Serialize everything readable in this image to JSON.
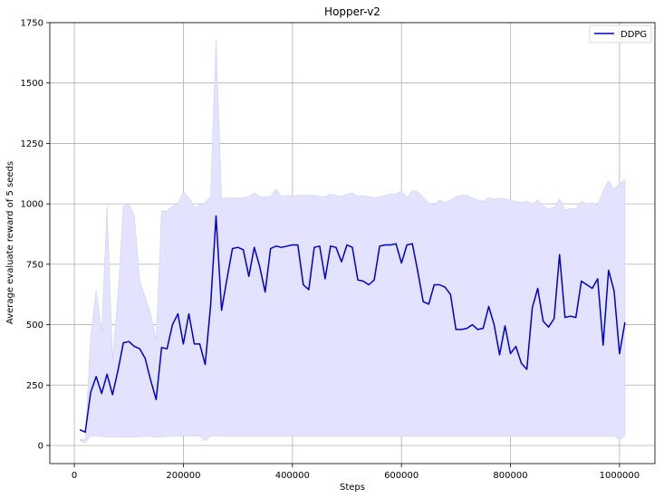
{
  "chart_data": {
    "type": "line",
    "title": "Hopper-v2",
    "xlabel": "Steps",
    "ylabel": "Average evaluate reward of 5 seeds",
    "xlim": [
      -45000,
      1065000
    ],
    "ylim": [
      -75,
      1750
    ],
    "xticks": [
      0,
      200000,
      400000,
      600000,
      800000,
      1000000
    ],
    "xtick_labels": [
      "0",
      "200000",
      "400000",
      "600000",
      "800000",
      "1000000"
    ],
    "yticks": [
      0,
      250,
      500,
      750,
      1000,
      1250,
      1500,
      1750
    ],
    "ytick_labels": [
      "0",
      "250",
      "500",
      "750",
      "1000",
      "1250",
      "1500",
      "1750"
    ],
    "grid": true,
    "legend_position": "top-right",
    "colors": {
      "line": "#0000cc",
      "band": "#e3e3ff",
      "band_edge": "#cfcff5",
      "grid": "#b0b0b0"
    },
    "series": [
      {
        "name": "DDPG",
        "x": [
          10000,
          20000,
          30000,
          40000,
          50000,
          60000,
          70000,
          80000,
          90000,
          100000,
          110000,
          120000,
          130000,
          140000,
          150000,
          160000,
          170000,
          180000,
          190000,
          200000,
          210000,
          220000,
          230000,
          240000,
          250000,
          260000,
          270000,
          280000,
          290000,
          300000,
          310000,
          320000,
          330000,
          340000,
          350000,
          360000,
          370000,
          380000,
          390000,
          400000,
          410000,
          420000,
          430000,
          440000,
          450000,
          460000,
          470000,
          480000,
          490000,
          500000,
          510000,
          520000,
          530000,
          540000,
          550000,
          560000,
          570000,
          580000,
          590000,
          600000,
          610000,
          620000,
          630000,
          640000,
          650000,
          660000,
          670000,
          680000,
          690000,
          700000,
          710000,
          720000,
          730000,
          740000,
          750000,
          760000,
          770000,
          780000,
          790000,
          800000,
          810000,
          820000,
          830000,
          840000,
          850000,
          860000,
          870000,
          880000,
          890000,
          900000,
          910000,
          920000,
          930000,
          940000,
          950000,
          960000,
          970000,
          980000,
          990000,
          1000000,
          1010000
        ],
        "y": [
          65,
          55,
          220,
          285,
          215,
          295,
          210,
          310,
          425,
          430,
          410,
          400,
          360,
          270,
          190,
          405,
          400,
          500,
          545,
          420,
          545,
          420,
          420,
          335,
          580,
          950,
          560,
          690,
          815,
          820,
          810,
          700,
          820,
          740,
          635,
          815,
          825,
          820,
          825,
          830,
          830,
          665,
          645,
          820,
          825,
          690,
          825,
          820,
          760,
          830,
          820,
          685,
          680,
          665,
          685,
          825,
          830,
          830,
          835,
          755,
          830,
          835,
          720,
          595,
          585,
          665,
          665,
          655,
          625,
          480,
          480,
          485,
          500,
          480,
          485,
          575,
          500,
          375,
          495,
          380,
          410,
          340,
          315,
          570,
          650,
          515,
          490,
          525,
          790,
          530,
          535,
          530,
          680,
          665,
          650,
          690,
          415,
          725,
          640,
          380,
          510
        ],
        "upper": [
          25,
          25,
          450,
          645,
          470,
          990,
          355,
          620,
          990,
          1000,
          950,
          680,
          615,
          545,
          435,
          970,
          970,
          990,
          1000,
          1050,
          1025,
          985,
          995,
          1005,
          1030,
          1680,
          1020,
          1025,
          1025,
          1025,
          1025,
          1030,
          1045,
          1030,
          1030,
          1030,
          1060,
          1030,
          1035,
          1030,
          1035,
          1035,
          1035,
          1035,
          1030,
          1030,
          1040,
          1035,
          1030,
          1040,
          1045,
          1030,
          1035,
          1030,
          1025,
          1030,
          1035,
          1040,
          1040,
          1055,
          1025,
          1055,
          1050,
          1025,
          1005,
          995,
          1015,
          1005,
          1015,
          1030,
          1035,
          1035,
          1025,
          1015,
          1010,
          1025,
          1020,
          1025,
          1020,
          1015,
          1010,
          1005,
          1010,
          1000,
          1015,
          990,
          980,
          985,
          1020,
          975,
          980,
          980,
          1010,
          1000,
          1005,
          995,
          1055,
          1095,
          1060,
          1085,
          1100
        ],
        "lower": [
          20,
          10,
          40,
          40,
          38,
          35,
          36,
          36,
          35,
          35,
          36,
          36,
          38,
          37,
          34,
          35,
          38,
          38,
          40,
          38,
          40,
          38,
          40,
          20,
          38,
          40,
          38,
          38,
          38,
          38,
          38,
          38,
          38,
          38,
          38,
          38,
          38,
          38,
          38,
          38,
          38,
          38,
          38,
          38,
          38,
          38,
          38,
          38,
          38,
          38,
          38,
          38,
          38,
          38,
          38,
          38,
          38,
          38,
          38,
          38,
          38,
          38,
          38,
          38,
          38,
          38,
          38,
          38,
          38,
          38,
          38,
          38,
          38,
          38,
          38,
          38,
          38,
          38,
          38,
          38,
          38,
          38,
          38,
          38,
          38,
          38,
          38,
          38,
          38,
          38,
          38,
          38,
          38,
          38,
          38,
          38,
          38,
          38,
          38,
          25,
          38
        ]
      }
    ]
  }
}
